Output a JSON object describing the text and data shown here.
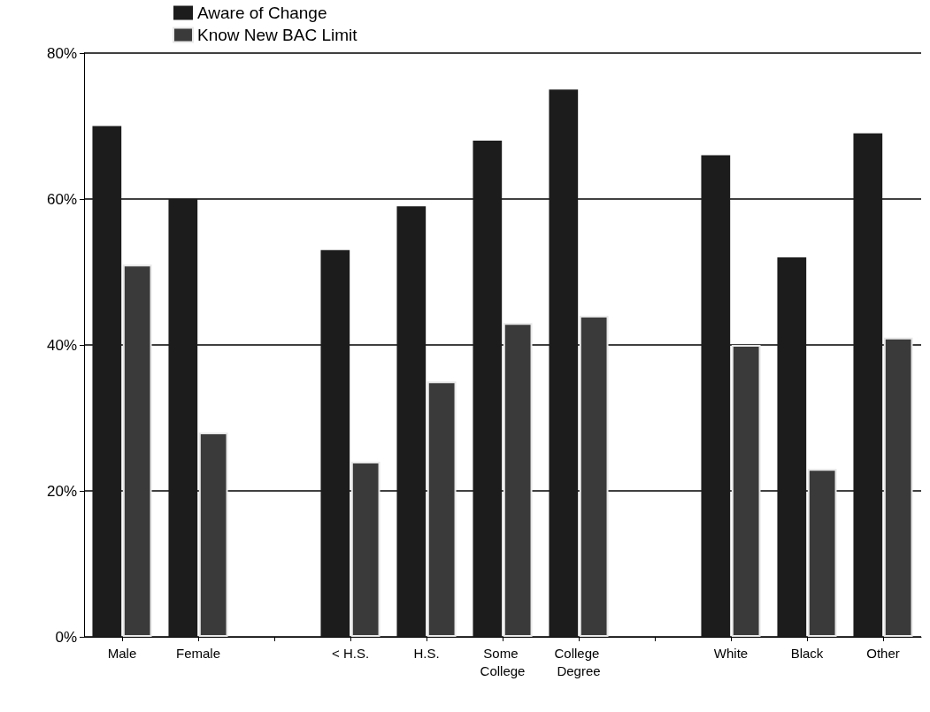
{
  "chart_data": {
    "type": "bar",
    "categories": [
      "Male",
      "Female",
      null,
      "< H.S.",
      "H.S.",
      "Some College",
      "College Degree",
      null,
      "White",
      "Black",
      "Other"
    ],
    "series": [
      {
        "name": "Aware of Change",
        "color": "#1c1c1c",
        "values": [
          70,
          60,
          null,
          53,
          59,
          68,
          75,
          null,
          66,
          52,
          69
        ]
      },
      {
        "name": "Know New BAC Limit",
        "color": "#3a3a3a",
        "values": [
          51,
          28,
          null,
          24,
          35,
          43,
          44,
          null,
          40,
          23,
          41
        ]
      }
    ],
    "ylim": [
      0,
      80
    ],
    "yticks": [
      {
        "value": 0,
        "label": "0%"
      },
      {
        "value": 20,
        "label": "20%"
      },
      {
        "value": 40,
        "label": "40%"
      },
      {
        "value": 60,
        "label": "60%"
      },
      {
        "value": 80,
        "label": "80%"
      }
    ],
    "grid": "y",
    "legend": "top left"
  }
}
